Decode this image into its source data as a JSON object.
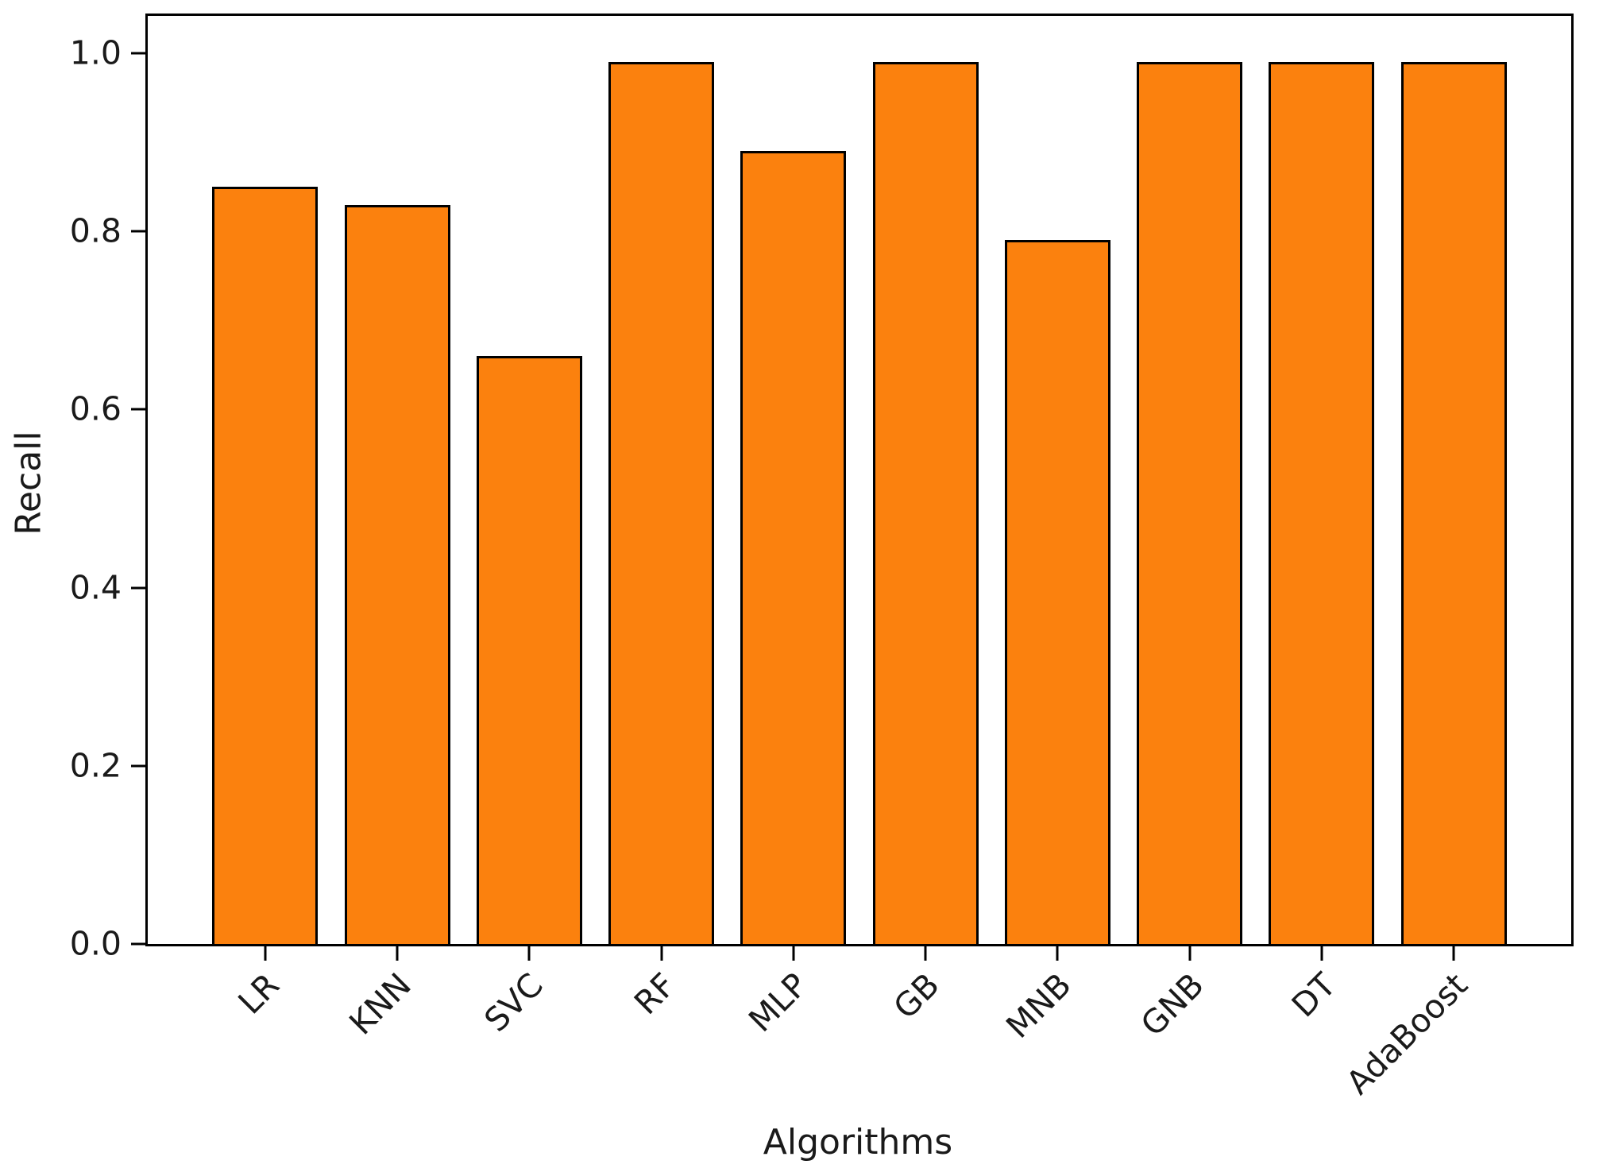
{
  "chart_data": {
    "type": "bar",
    "title": "",
    "categories": [
      "LR",
      "KNN",
      "SVC",
      "RF",
      "MLP",
      "GB",
      "MNB",
      "GNB",
      "DT",
      "AdaBoost"
    ],
    "values": [
      0.85,
      0.83,
      0.66,
      0.99,
      0.89,
      0.99,
      0.79,
      0.99,
      0.99,
      0.99
    ],
    "xlabel": "Algorithms",
    "ylabel": "Recall",
    "yticks": [
      0.0,
      0.2,
      0.4,
      0.6,
      0.8,
      1.0
    ],
    "ytick_labels": [
      "0.0",
      "0.2",
      "0.4",
      "0.6",
      "0.8",
      "1.0"
    ],
    "xtick_rotation_deg": 45,
    "xlim": [
      -0.89,
      9.89
    ],
    "ylim": [
      0,
      1.042
    ],
    "bar_width": 0.8,
    "bar_color": "#fb810e",
    "bar_edge_color": "#000000",
    "axis_color": "#000000",
    "text_color": "#1a1a1a",
    "background_color": "#ffffff",
    "grid": false,
    "legend_position": null
  }
}
